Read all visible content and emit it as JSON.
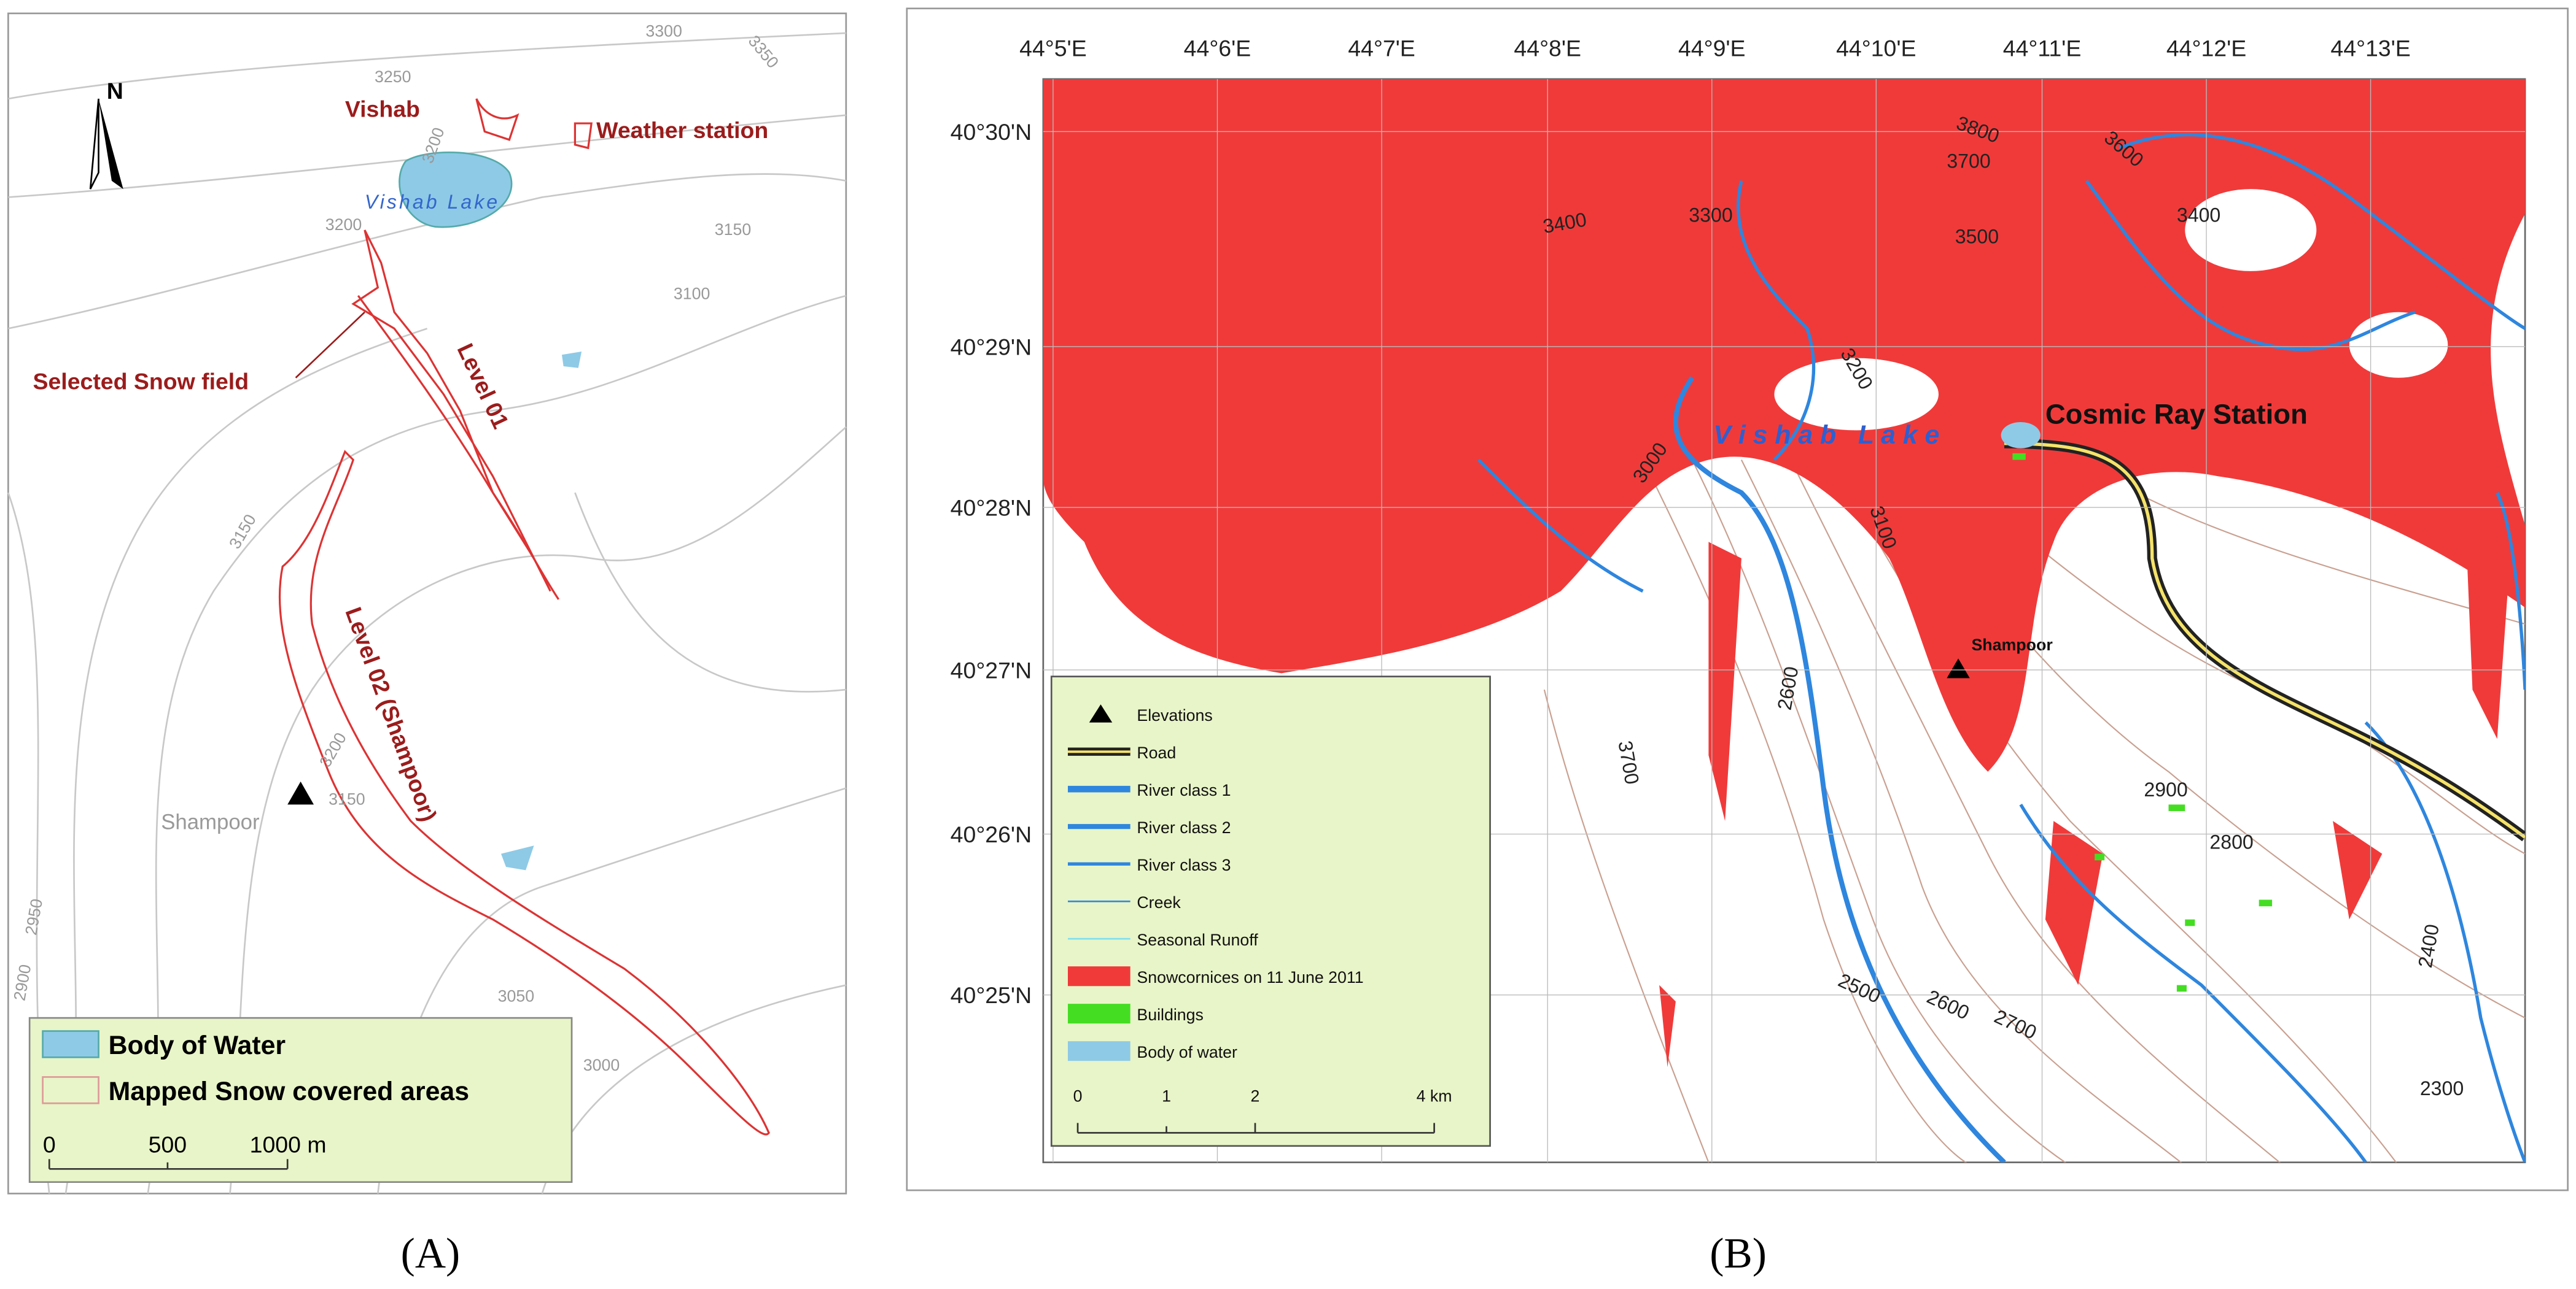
{
  "panel_a": {
    "north": "N",
    "labels": {
      "vishab": "Vishab",
      "weather_station": "Weather station",
      "lake": "Vishab Lake",
      "snow_field": "Selected Snow field",
      "level_01": "Level 01",
      "level_02": "Level 02 (Shampoor)",
      "shampoor": "Shampoor"
    },
    "contours": [
      "3300",
      "3250",
      "3350",
      "3200",
      "3200",
      "3150",
      "3100",
      "3150",
      "3200",
      "3150",
      "2950",
      "2900",
      "3050",
      "3000"
    ],
    "legend": [
      "Body of Water",
      "Mapped Snow covered areas"
    ],
    "scale": [
      "0",
      "500",
      "1000 m"
    ]
  },
  "panel_b": {
    "x_ticks": [
      "44°5'E",
      "44°6'E",
      "44°7'E",
      "44°8'E",
      "44°9'E",
      "44°10'E",
      "44°11'E",
      "44°12'E",
      "44°13'E"
    ],
    "y_ticks": [
      "40°30'N",
      "40°29'N",
      "40°28'N",
      "40°27'N",
      "40°26'N",
      "40°25'N"
    ],
    "labels": {
      "station": "Cosmic Ray Station",
      "lake": "V i s h a b   L a k e",
      "shampoor": "Shampoor"
    },
    "contours": [
      "3800",
      "3700",
      "3600",
      "3400",
      "3300",
      "3500",
      "3400",
      "3200",
      "3000",
      "3100",
      "2600",
      "3700",
      "2900",
      "2800",
      "2500",
      "2600",
      "2700",
      "2400",
      "2300"
    ],
    "legend": [
      "Elevations",
      "Road",
      "River class 1",
      "River class 2",
      "River class 3",
      "Creek",
      "Seasonal Runoff",
      "Snowcornices on 11 June 2011",
      "Buildings",
      "Body of water"
    ],
    "scale": [
      "0",
      "1",
      "2",
      "4 km"
    ]
  },
  "captions": [
    "(A)",
    "(B)"
  ]
}
